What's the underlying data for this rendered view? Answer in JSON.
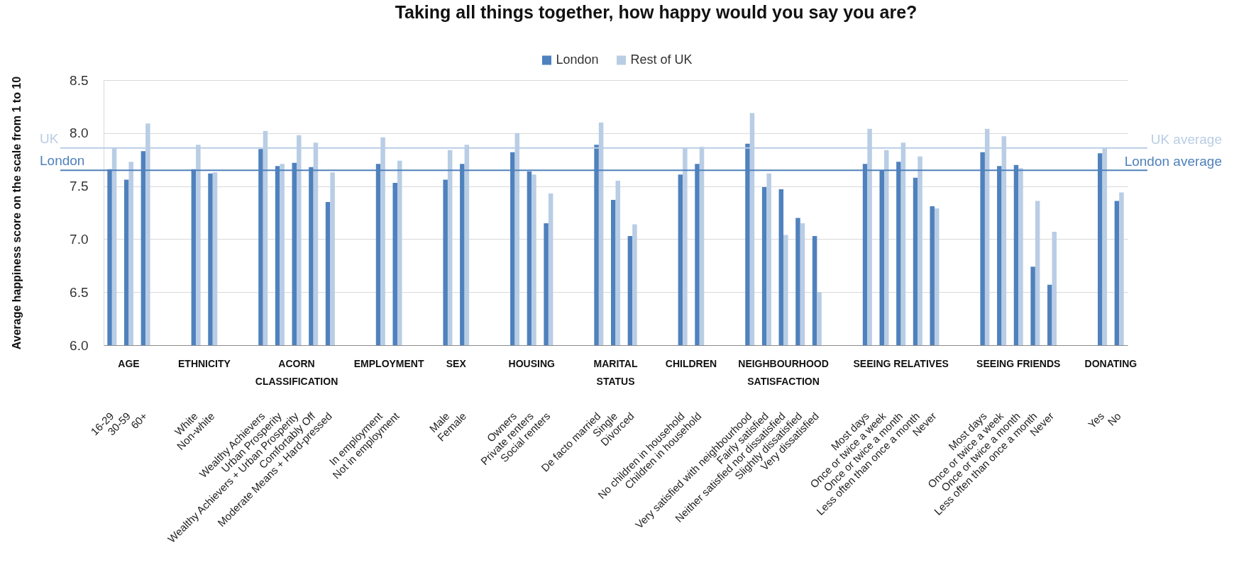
{
  "chart_data": {
    "type": "bar",
    "title": "Taking all things together, how happy would you say you are?",
    "ylabel": "Average happiness score on the scale from 1 to 10",
    "categories": [
      "16-29",
      "30-59",
      "60+",
      null,
      null,
      "White",
      "Non-white",
      null,
      null,
      "Wealthy Achievers",
      "Urban Prosperity",
      "Wealthy Achievers + Urban Prosperity",
      "Comfortably Off",
      "Moderate Means + Hard-pressed",
      null,
      null,
      "In employment",
      "Not in employment",
      null,
      null,
      "Male",
      "Female",
      null,
      null,
      "Owners",
      "Private renters",
      "Social renters",
      null,
      null,
      "De facto married",
      "Single",
      "Divorced",
      null,
      null,
      "No children in household",
      "Children in household",
      null,
      null,
      "Very satisfied with neighbourhood",
      "Fairly satisfied",
      "Neither satisfied nor dissatisfied",
      "Slightly dissatisfied",
      "Very dissatisfied",
      null,
      null,
      "Most days",
      "Once or twice a week",
      "Once or twice a month",
      "Less often than once a month",
      "Never",
      null,
      null,
      "Most days",
      "Once or twice a week",
      "Once or twice a month",
      "Less often than once a month",
      "Never",
      null,
      null,
      "Yes",
      "No"
    ],
    "series": [
      {
        "name": "London",
        "color": "#4f81bd",
        "values": [
          7.66,
          7.56,
          7.83,
          null,
          null,
          7.66,
          7.62,
          null,
          null,
          7.85,
          7.69,
          7.72,
          7.68,
          7.35,
          null,
          null,
          7.71,
          7.53,
          null,
          null,
          7.56,
          7.71,
          null,
          null,
          7.82,
          7.64,
          7.15,
          null,
          null,
          7.89,
          7.37,
          7.03,
          null,
          null,
          7.61,
          7.71,
          null,
          null,
          7.9,
          7.49,
          7.47,
          7.2,
          7.03,
          null,
          null,
          7.71,
          7.65,
          7.73,
          7.58,
          7.31,
          null,
          null,
          7.82,
          7.69,
          7.7,
          6.74,
          6.57,
          null,
          null,
          7.81,
          7.36
        ]
      },
      {
        "name": "Rest of UK",
        "color": "#b9cde5",
        "values": [
          7.86,
          7.73,
          8.09,
          null,
          null,
          7.89,
          7.63,
          null,
          null,
          8.02,
          7.71,
          7.98,
          7.91,
          7.63,
          null,
          null,
          7.96,
          7.74,
          null,
          null,
          7.84,
          7.89,
          null,
          null,
          8.0,
          7.61,
          7.43,
          null,
          null,
          8.1,
          7.55,
          7.14,
          null,
          null,
          7.86,
          7.87,
          null,
          null,
          8.19,
          7.62,
          7.04,
          7.15,
          6.5,
          null,
          null,
          8.04,
          7.84,
          7.91,
          7.78,
          7.29,
          null,
          null,
          8.04,
          7.97,
          7.67,
          7.36,
          7.07,
          null,
          null,
          7.86,
          7.44
        ]
      }
    ],
    "ylim": [
      6,
      8.5
    ],
    "yticks": [
      {
        "value": 6,
        "label": "6.0"
      },
      {
        "value": 6.5,
        "label": "6.5"
      },
      {
        "value": 7,
        "label": "7.0"
      },
      {
        "value": 7.5,
        "label": "7.5"
      },
      {
        "value": 8,
        "label": "8.0"
      },
      {
        "value": 8.5,
        "label": "8.5"
      }
    ],
    "grid": "y",
    "legend": "top",
    "ref_lines": [
      {
        "axis": "y",
        "value": 7.86,
        "label": "UK average",
        "color": "#b9cde5"
      },
      {
        "axis": "y",
        "value": 7.65,
        "label": "London average",
        "color": "#4f81bd"
      }
    ],
    "annotations": [
      "AGE",
      "ETHNICITY",
      "ACORN\nCLASSIFICATION",
      "EMPLOYMENT",
      "SEX",
      "HOUSING",
      "MARITAL\nSTATUS",
      "CHILDREN",
      "NEIGHBOURHOOD\nSATISFACTION",
      "SEEING RELATIVES",
      "SEEING FRIENDS",
      "DONATING",
      "UK",
      "London"
    ]
  }
}
